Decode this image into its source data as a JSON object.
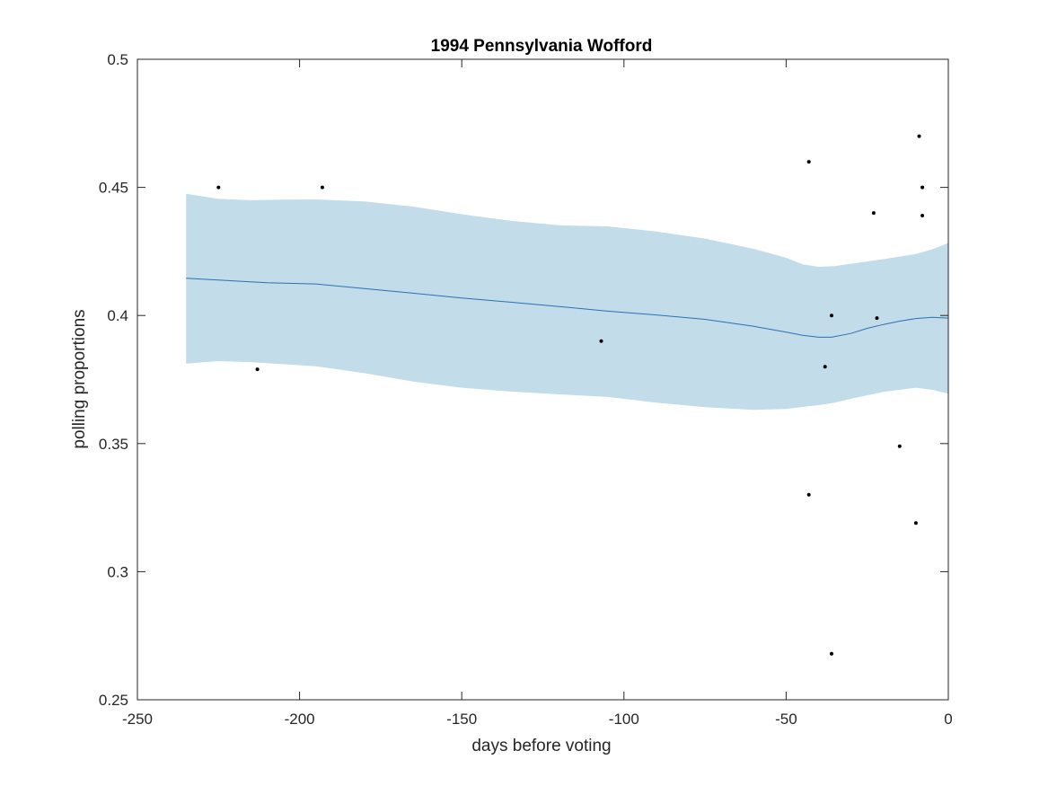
{
  "chart_data": {
    "type": "scatter",
    "title": "1994 Pennsylvania Wofford",
    "xlabel": "days before voting",
    "ylabel": "polling proportions",
    "xlim": [
      -250,
      0
    ],
    "ylim": [
      0.25,
      0.5
    ],
    "x_ticks": [
      -250,
      -200,
      -150,
      -100,
      -50,
      0
    ],
    "x_tick_labels": [
      "-250",
      "-200",
      "-150",
      "-100",
      "-50",
      "0"
    ],
    "y_ticks": [
      0.25,
      0.3,
      0.35,
      0.4,
      0.45,
      0.5
    ],
    "y_tick_labels": [
      "0.25",
      "0.3",
      "0.35",
      "0.4",
      "0.45",
      "0.5"
    ],
    "grid": false,
    "colors": {
      "band": "#c2dcea",
      "trend": "#2f6fb2",
      "points": "#000000",
      "axes": "#262626"
    },
    "points": {
      "x": [
        -225,
        -213,
        -193,
        -107,
        -43,
        -43,
        -38,
        -36,
        -36,
        -23,
        -22,
        -15,
        -10,
        -9,
        -8,
        -8
      ],
      "y": [
        0.45,
        0.379,
        0.45,
        0.39,
        0.46,
        0.33,
        0.38,
        0.4,
        0.268,
        0.44,
        0.399,
        0.349,
        0.319,
        0.47,
        0.45,
        0.439
      ]
    },
    "trend": {
      "x": [
        -235,
        -225,
        -210,
        -195,
        -180,
        -165,
        -150,
        -135,
        -120,
        -105,
        -90,
        -75,
        -60,
        -50,
        -45,
        -40,
        -36,
        -30,
        -25,
        -20,
        -15,
        -10,
        -5,
        0
      ],
      "y": [
        0.4145,
        0.4138,
        0.4128,
        0.4123,
        0.4105,
        0.4087,
        0.4068,
        0.4052,
        0.4035,
        0.4017,
        0.4002,
        0.3985,
        0.3958,
        0.3935,
        0.3923,
        0.3915,
        0.3915,
        0.393,
        0.395,
        0.3965,
        0.3978,
        0.3988,
        0.3993,
        0.399
      ]
    },
    "band_upper": {
      "x": [
        -235,
        -225,
        -215,
        -205,
        -195,
        -180,
        -165,
        -150,
        -135,
        -120,
        -105,
        -90,
        -75,
        -60,
        -50,
        -45,
        -40,
        -35,
        -30,
        -20,
        -10,
        -5,
        0
      ],
      "y": [
        0.4475,
        0.4455,
        0.445,
        0.4452,
        0.4453,
        0.4445,
        0.4425,
        0.4395,
        0.437,
        0.4352,
        0.4348,
        0.4328,
        0.43,
        0.426,
        0.4225,
        0.42,
        0.419,
        0.4193,
        0.4202,
        0.422,
        0.424,
        0.4258,
        0.4283
      ]
    },
    "band_lower": {
      "x": [
        -235,
        -225,
        -215,
        -205,
        -195,
        -180,
        -165,
        -150,
        -135,
        -120,
        -105,
        -90,
        -75,
        -60,
        -50,
        -45,
        -40,
        -35,
        -30,
        -20,
        -10,
        -5,
        0
      ],
      "y": [
        0.3812,
        0.3822,
        0.3818,
        0.381,
        0.3802,
        0.3775,
        0.3742,
        0.3718,
        0.3703,
        0.3692,
        0.3682,
        0.366,
        0.3642,
        0.3632,
        0.3635,
        0.3643,
        0.365,
        0.366,
        0.3675,
        0.3702,
        0.3718,
        0.371,
        0.3695
      ]
    }
  }
}
